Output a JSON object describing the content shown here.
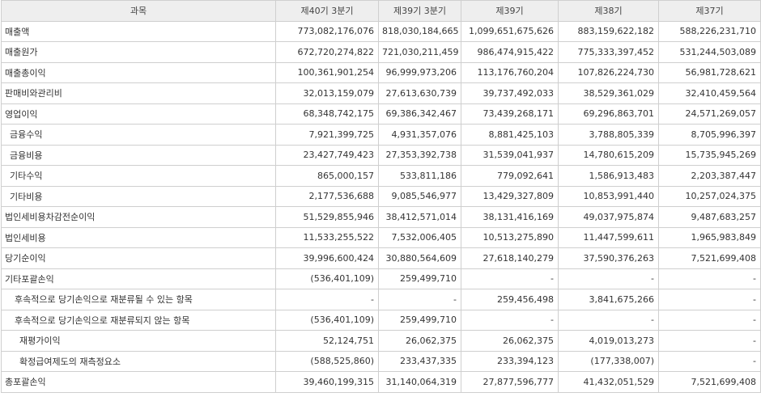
{
  "headers": [
    "과목",
    "제40기 3분기",
    "제39기 3분기",
    "제39기",
    "제38기",
    "제37기"
  ],
  "rows": [
    {
      "label": "매출액",
      "indent": 0,
      "values": [
        "773,082,176,076",
        "818,030,184,665",
        "1,099,651,675,626",
        "883,159,622,182",
        "588,226,231,710"
      ]
    },
    {
      "label": "매출원가",
      "indent": 0,
      "values": [
        "672,720,274,822",
        "721,030,211,459",
        "986,474,915,422",
        "775,333,397,452",
        "531,244,503,089"
      ]
    },
    {
      "label": "매출총이익",
      "indent": 0,
      "values": [
        "100,361,901,254",
        "96,999,973,206",
        "113,176,760,204",
        "107,826,224,730",
        "56,981,728,621"
      ]
    },
    {
      "label": "판매비와관리비",
      "indent": 0,
      "values": [
        "32,013,159,079",
        "27,613,630,739",
        "39,737,492,033",
        "38,529,361,029",
        "32,410,459,564"
      ]
    },
    {
      "label": "영업이익",
      "indent": 0,
      "values": [
        "68,348,742,175",
        "69,386,342,467",
        "73,439,268,171",
        "69,296,863,701",
        "24,571,269,057"
      ]
    },
    {
      "label": "금융수익",
      "indent": 1,
      "values": [
        "7,921,399,725",
        "4,931,357,076",
        "8,881,425,103",
        "3,788,805,339",
        "8,705,996,397"
      ]
    },
    {
      "label": "금융비용",
      "indent": 1,
      "values": [
        "23,427,749,423",
        "27,353,392,738",
        "31,539,041,937",
        "14,780,615,209",
        "15,735,945,269"
      ]
    },
    {
      "label": "기타수익",
      "indent": 1,
      "values": [
        "865,000,157",
        "533,811,186",
        "779,092,641",
        "1,586,913,483",
        "2,203,387,447"
      ]
    },
    {
      "label": "기타비용",
      "indent": 1,
      "values": [
        "2,177,536,688",
        "9,085,546,977",
        "13,429,327,809",
        "10,853,991,440",
        "10,257,024,375"
      ]
    },
    {
      "label": "법인세비용차감전순이익",
      "indent": 0,
      "values": [
        "51,529,855,946",
        "38,412,571,014",
        "38,131,416,169",
        "49,037,975,874",
        "9,487,683,257"
      ]
    },
    {
      "label": "법인세비용",
      "indent": 0,
      "values": [
        "11,533,255,522",
        "7,532,006,405",
        "10,513,275,890",
        "11,447,599,611",
        "1,965,983,849"
      ]
    },
    {
      "label": "당기순이익",
      "indent": 0,
      "values": [
        "39,996,600,424",
        "30,880,564,609",
        "27,618,140,279",
        "37,590,376,263",
        "7,521,699,408"
      ]
    },
    {
      "label": "기타포괄손익",
      "indent": 0,
      "values": [
        "(536,401,109)",
        "259,499,710",
        "-",
        "-",
        "-"
      ]
    },
    {
      "label": "후속적으로 당기손익으로 재분류될 수 있는 항목",
      "indent": 2,
      "values": [
        "-",
        "-",
        "259,456,498",
        "3,841,675,266",
        "-"
      ]
    },
    {
      "label": "후속적으로 당기손익으로 재분류되지 않는 항목",
      "indent": 2,
      "values": [
        "(536,401,109)",
        "259,499,710",
        "-",
        "-",
        "-"
      ]
    },
    {
      "label": "재평가이익",
      "indent": 3,
      "values": [
        "52,124,751",
        "26,062,375",
        "26,062,375",
        "4,019,013,273",
        "-"
      ]
    },
    {
      "label": "확정급여제도의 재측정요소",
      "indent": 3,
      "values": [
        "(588,525,860)",
        "233,437,335",
        "233,394,123",
        "(177,338,007)",
        "-"
      ]
    },
    {
      "label": "총포괄손익",
      "indent": 0,
      "values": [
        "39,460,199,315",
        "31,140,064,319",
        "27,877,596,777",
        "41,432,051,529",
        "7,521,699,408"
      ]
    }
  ]
}
